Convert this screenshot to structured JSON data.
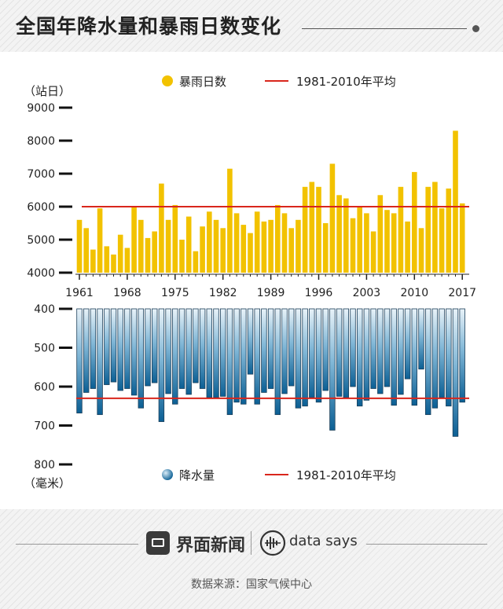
{
  "header": {
    "title": "全国年降水量和暴雨日数变化"
  },
  "footer": {
    "brand_cn": "界面新闻",
    "brand_en": "data says",
    "source": "数据来源：国家气候中心"
  },
  "colors": {
    "rain_bar": "#f2c200",
    "precip_top": "#e8f2f8",
    "precip_bottom": "#0b5f94",
    "avg_line": "#d9261c"
  },
  "icons": {
    "brand": "jiemian-logo-icon",
    "datasays": "data-says-logo-icon"
  },
  "chart_data": [
    {
      "type": "bar",
      "ylabel": "（站日）",
      "ylim": [
        4000,
        9000
      ],
      "yticks": [
        4000,
        5000,
        6000,
        7000,
        8000,
        9000
      ],
      "legend": {
        "series": "暴雨日数",
        "avg": "1981-2010年平均",
        "placement": "top"
      },
      "average": 6000,
      "x": [
        1961,
        1962,
        1963,
        1964,
        1965,
        1966,
        1967,
        1968,
        1969,
        1970,
        1971,
        1972,
        1973,
        1974,
        1975,
        1976,
        1977,
        1978,
        1979,
        1980,
        1981,
        1982,
        1983,
        1984,
        1985,
        1986,
        1987,
        1988,
        1989,
        1990,
        1991,
        1992,
        1993,
        1994,
        1995,
        1996,
        1997,
        1998,
        1999,
        2000,
        2001,
        2002,
        2003,
        2004,
        2005,
        2006,
        2007,
        2008,
        2009,
        2010,
        2011,
        2012,
        2013,
        2014,
        2015,
        2016,
        2017
      ],
      "xticks": [
        1961,
        1968,
        1975,
        1982,
        1989,
        1996,
        2003,
        2010,
        2017
      ],
      "values": [
        5600,
        5350,
        4700,
        5950,
        4800,
        4550,
        5150,
        4750,
        6000,
        5600,
        5050,
        5250,
        6700,
        5600,
        6050,
        5000,
        5700,
        4650,
        5400,
        5850,
        5600,
        5350,
        7150,
        5800,
        5450,
        5200,
        5850,
        5550,
        5600,
        6050,
        5800,
        5350,
        5600,
        6600,
        6750,
        6600,
        5500,
        7300,
        6350,
        6250,
        5650,
        6000,
        5800,
        5250,
        6350,
        5900,
        5800,
        6600,
        5550,
        7050,
        5350,
        6600,
        6750,
        5950,
        6550,
        8300,
        6100
      ]
    },
    {
      "type": "bar",
      "ylabel": "（毫米）",
      "ylim": [
        400,
        800
      ],
      "yticks": [
        400,
        500,
        600,
        700,
        800
      ],
      "inverted": true,
      "legend": {
        "series": "降水量",
        "avg": "1981-2010年平均",
        "placement": "bottom"
      },
      "average": 630,
      "x": [
        1961,
        1962,
        1963,
        1964,
        1965,
        1966,
        1967,
        1968,
        1969,
        1970,
        1971,
        1972,
        1973,
        1974,
        1975,
        1976,
        1977,
        1978,
        1979,
        1980,
        1981,
        1982,
        1983,
        1984,
        1985,
        1986,
        1987,
        1988,
        1989,
        1990,
        1991,
        1992,
        1993,
        1994,
        1995,
        1996,
        1997,
        1998,
        1999,
        2000,
        2001,
        2002,
        2003,
        2004,
        2005,
        2006,
        2007,
        2008,
        2009,
        2010,
        2011,
        2012,
        2013,
        2014,
        2015,
        2016,
        2017
      ],
      "values": [
        668,
        615,
        605,
        672,
        595,
        588,
        610,
        605,
        622,
        655,
        598,
        590,
        690,
        618,
        645,
        605,
        620,
        590,
        605,
        628,
        628,
        625,
        672,
        640,
        645,
        568,
        645,
        615,
        605,
        672,
        618,
        598,
        655,
        650,
        628,
        640,
        610,
        712,
        625,
        628,
        600,
        650,
        635,
        605,
        618,
        600,
        648,
        620,
        580,
        648,
        555,
        672,
        655,
        628,
        650,
        728,
        640
      ]
    }
  ]
}
